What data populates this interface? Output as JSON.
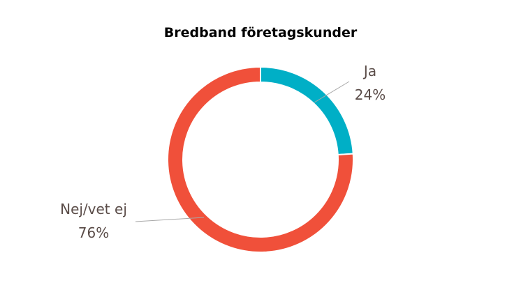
{
  "chart_data": {
    "type": "pie",
    "variant": "donut",
    "title": "Bredband företagskunder",
    "categories": [
      "Ja",
      "Nej/vet ej"
    ],
    "values": [
      24,
      76
    ],
    "value_labels": [
      "24%",
      "76%"
    ],
    "colors": [
      "#00afc6",
      "#f0503a"
    ],
    "start_angle_deg": 0,
    "direction": "clockwise"
  }
}
